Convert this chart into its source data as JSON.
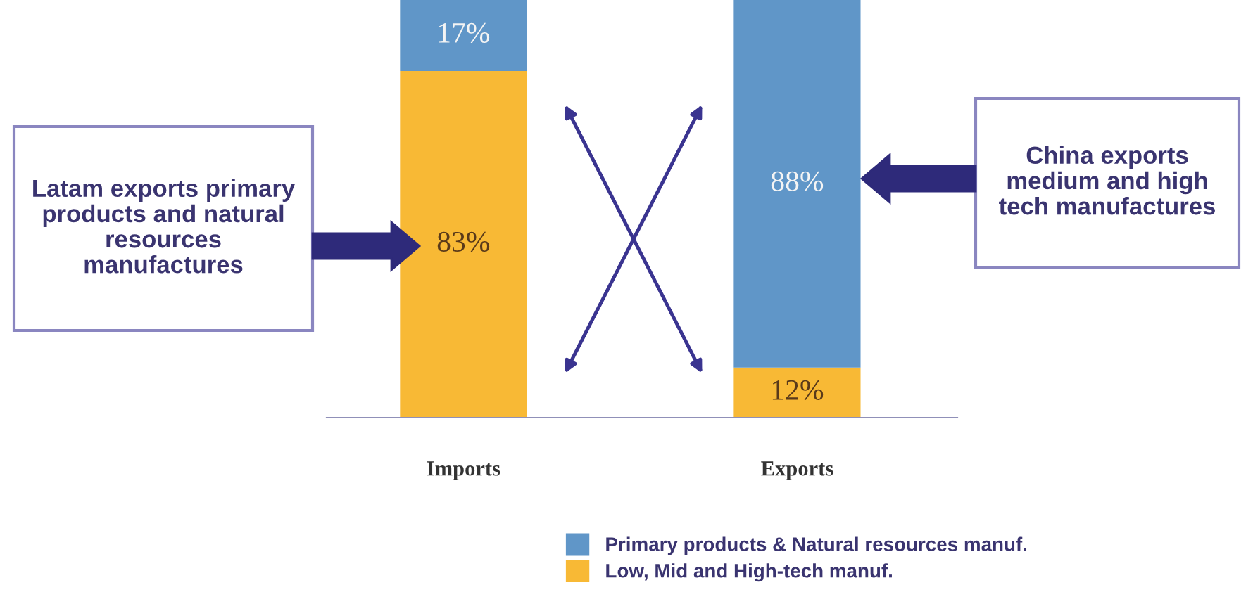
{
  "chart_data": {
    "type": "bar",
    "stacked": true,
    "categories": [
      "Imports",
      "Exports"
    ],
    "series": [
      {
        "name": "Low, Mid and High-tech manuf.",
        "color": "#f8b935",
        "values": [
          83,
          12
        ],
        "value_labels": [
          "83%",
          "12%"
        ]
      },
      {
        "name": "Primary products & Natural resources manuf.",
        "color": "#6096c8",
        "values": [
          17,
          88
        ],
        "value_labels": [
          "17%",
          "88%"
        ]
      }
    ],
    "legend": "bottom",
    "grid": false,
    "annotations": [
      "Latam exports primary products and natural resources manufactures",
      "China exports medium and high tech manufactures"
    ]
  }
}
